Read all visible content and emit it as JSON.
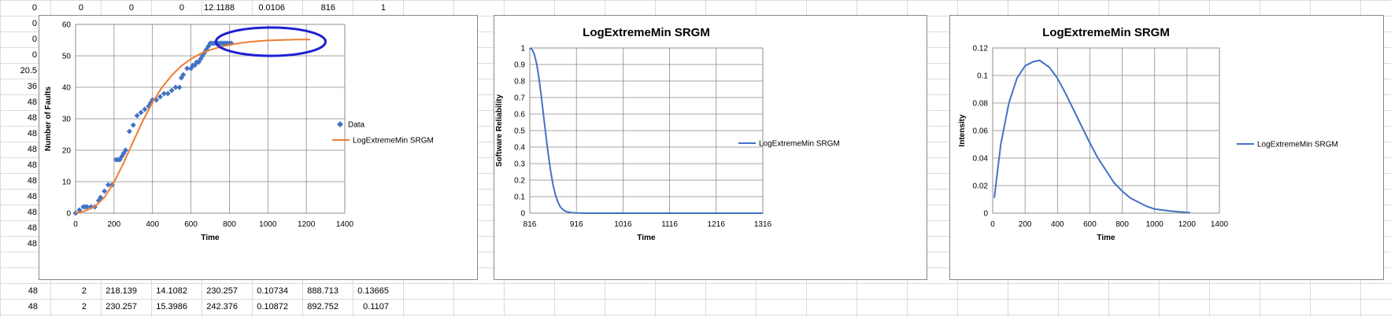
{
  "sheet": {
    "left_col_values": [
      "0",
      "0",
      "0",
      "0",
      "20.5",
      "36",
      "48",
      "48",
      "48",
      "48",
      "48",
      "48",
      "48",
      "48",
      "48",
      "48"
    ],
    "top_row": [
      "0",
      "0",
      "0",
      "12.1188",
      "0.0106",
      "816",
      "1"
    ],
    "bottom_rows": [
      [
        "48",
        "2",
        "218.139",
        "14.1082",
        "230.257",
        "0.10734",
        "888.713",
        "0.13665"
      ],
      [
        "48",
        "2",
        "230.257",
        "15.3986",
        "242.376",
        "0.10872",
        "892.752",
        "0.1107"
      ]
    ]
  },
  "colors": {
    "data_marker": "#4472c4",
    "model_line": "#ed7d31",
    "reliability_line": "#4472c4",
    "intensity_line": "#4472c4",
    "grid": "#868686",
    "annotation_circle": "#1f1fd1"
  },
  "chart_data": [
    {
      "type": "scatter",
      "title": "",
      "xlabel": "Time",
      "ylabel": "Number of Faults",
      "xlim": [
        0,
        1400
      ],
      "ylim": [
        0,
        60
      ],
      "x_ticks": [
        "0",
        "200",
        "400",
        "600",
        "800",
        "1000",
        "1200",
        "1400"
      ],
      "y_ticks": [
        "0",
        "10",
        "20",
        "30",
        "40",
        "50",
        "60"
      ],
      "legend_position": "right",
      "grid": true,
      "series": [
        {
          "name": "Data",
          "kind": "markers",
          "points": [
            [
              0,
              0
            ],
            [
              20,
              1
            ],
            [
              40,
              2
            ],
            [
              50,
              2
            ],
            [
              60,
              2
            ],
            [
              80,
              2
            ],
            [
              100,
              2
            ],
            [
              120,
              4
            ],
            [
              130,
              5
            ],
            [
              150,
              7
            ],
            [
              170,
              9
            ],
            [
              190,
              9
            ],
            [
              210,
              17
            ],
            [
              220,
              17
            ],
            [
              230,
              17
            ],
            [
              240,
              18
            ],
            [
              250,
              19
            ],
            [
              260,
              20
            ],
            [
              280,
              26
            ],
            [
              300,
              28
            ],
            [
              320,
              31
            ],
            [
              340,
              32
            ],
            [
              360,
              33
            ],
            [
              380,
              34
            ],
            [
              390,
              35
            ],
            [
              400,
              36
            ],
            [
              420,
              36
            ],
            [
              440,
              37
            ],
            [
              460,
              38
            ],
            [
              480,
              38
            ],
            [
              500,
              39
            ],
            [
              520,
              40
            ],
            [
              540,
              40
            ],
            [
              550,
              43
            ],
            [
              560,
              44
            ],
            [
              580,
              46
            ],
            [
              600,
              46
            ],
            [
              610,
              47
            ],
            [
              620,
              47
            ],
            [
              630,
              48
            ],
            [
              640,
              48
            ],
            [
              650,
              49
            ],
            [
              660,
              50
            ],
            [
              670,
              51
            ],
            [
              680,
              52
            ],
            [
              690,
              53
            ],
            [
              700,
              54
            ],
            [
              710,
              54
            ],
            [
              720,
              54
            ],
            [
              730,
              54
            ],
            [
              740,
              54
            ],
            [
              750,
              54
            ],
            [
              760,
              54
            ],
            [
              770,
              54
            ],
            [
              780,
              54
            ],
            [
              790,
              54
            ],
            [
              800,
              54
            ],
            [
              810,
              54
            ]
          ]
        },
        {
          "name": "LogExtremeMin SRGM",
          "kind": "line",
          "points": [
            [
              0,
              0
            ],
            [
              50,
              0.7
            ],
            [
              100,
              2.1
            ],
            [
              150,
              5.0
            ],
            [
              200,
              9.8
            ],
            [
              250,
              16.0
            ],
            [
              300,
              22.8
            ],
            [
              350,
              29.4
            ],
            [
              400,
              35.2
            ],
            [
              450,
              40.0
            ],
            [
              500,
              43.8
            ],
            [
              550,
              46.8
            ],
            [
              600,
              49.0
            ],
            [
              650,
              50.7
            ],
            [
              700,
              51.9
            ],
            [
              750,
              52.8
            ],
            [
              800,
              53.5
            ],
            [
              850,
              54.0
            ],
            [
              900,
              54.4
            ],
            [
              950,
              54.7
            ],
            [
              1000,
              54.9
            ],
            [
              1050,
              55.0
            ],
            [
              1100,
              55.1
            ],
            [
              1150,
              55.2
            ],
            [
              1200,
              55.2
            ],
            [
              1220,
              55.2
            ]
          ]
        }
      ],
      "annotation": "hand-drawn circle around saturated region"
    },
    {
      "type": "line",
      "title": "LogExtremeMin SRGM",
      "xlabel": "Time",
      "ylabel": "Software Reliability",
      "xlim": [
        816,
        1316
      ],
      "ylim": [
        0,
        1
      ],
      "x_ticks": [
        "816",
        "916",
        "1016",
        "1116",
        "1216",
        "1316"
      ],
      "y_ticks": [
        "0",
        "0.1",
        "0.2",
        "0.3",
        "0.4",
        "0.5",
        "0.6",
        "0.7",
        "0.8",
        "0.9",
        "1"
      ],
      "legend_position": "right",
      "grid": true,
      "series": [
        {
          "name": "LogExtremeMin SRGM",
          "points": [
            [
              816,
              1.0
            ],
            [
              821,
              0.99
            ],
            [
              826,
              0.96
            ],
            [
              831,
              0.9
            ],
            [
              836,
              0.81
            ],
            [
              841,
              0.7
            ],
            [
              846,
              0.58
            ],
            [
              851,
              0.46
            ],
            [
              856,
              0.35
            ],
            [
              861,
              0.25
            ],
            [
              866,
              0.17
            ],
            [
              871,
              0.11
            ],
            [
              876,
              0.07
            ],
            [
              881,
              0.04
            ],
            [
              886,
              0.025
            ],
            [
              891,
              0.014
            ],
            [
              896,
              0.008
            ],
            [
              906,
              0.003
            ],
            [
              916,
              0.001
            ],
            [
              936,
              0
            ],
            [
              1016,
              0
            ],
            [
              1116,
              0
            ],
            [
              1216,
              0
            ],
            [
              1316,
              0
            ]
          ]
        }
      ]
    },
    {
      "type": "line",
      "title": "LogExtremeMin SRGM",
      "xlabel": "Time",
      "ylabel": "Intensity",
      "xlim": [
        0,
        1400
      ],
      "ylim": [
        0,
        0.12
      ],
      "x_ticks": [
        "0",
        "200",
        "400",
        "600",
        "800",
        "1000",
        "1200",
        "1400"
      ],
      "y_ticks": [
        "0",
        "0.02",
        "0.04",
        "0.06",
        "0.08",
        "0.1",
        "0.12"
      ],
      "legend_position": "right",
      "grid": true,
      "series": [
        {
          "name": "LogExtremeMin SRGM",
          "points": [
            [
              10,
              0.011
            ],
            [
              50,
              0.05
            ],
            [
              100,
              0.08
            ],
            [
              150,
              0.098
            ],
            [
              200,
              0.107
            ],
            [
              250,
              0.11
            ],
            [
              290,
              0.111
            ],
            [
              350,
              0.106
            ],
            [
              400,
              0.098
            ],
            [
              450,
              0.087
            ],
            [
              500,
              0.075
            ],
            [
              550,
              0.063
            ],
            [
              600,
              0.051
            ],
            [
              650,
              0.04
            ],
            [
              700,
              0.031
            ],
            [
              750,
              0.022
            ],
            [
              800,
              0.016
            ],
            [
              850,
              0.011
            ],
            [
              900,
              0.008
            ],
            [
              950,
              0.005
            ],
            [
              1000,
              0.003
            ],
            [
              1100,
              0.0015
            ],
            [
              1150,
              0.001
            ],
            [
              1200,
              0.0005
            ],
            [
              1220,
              0.0004
            ]
          ]
        }
      ]
    }
  ]
}
